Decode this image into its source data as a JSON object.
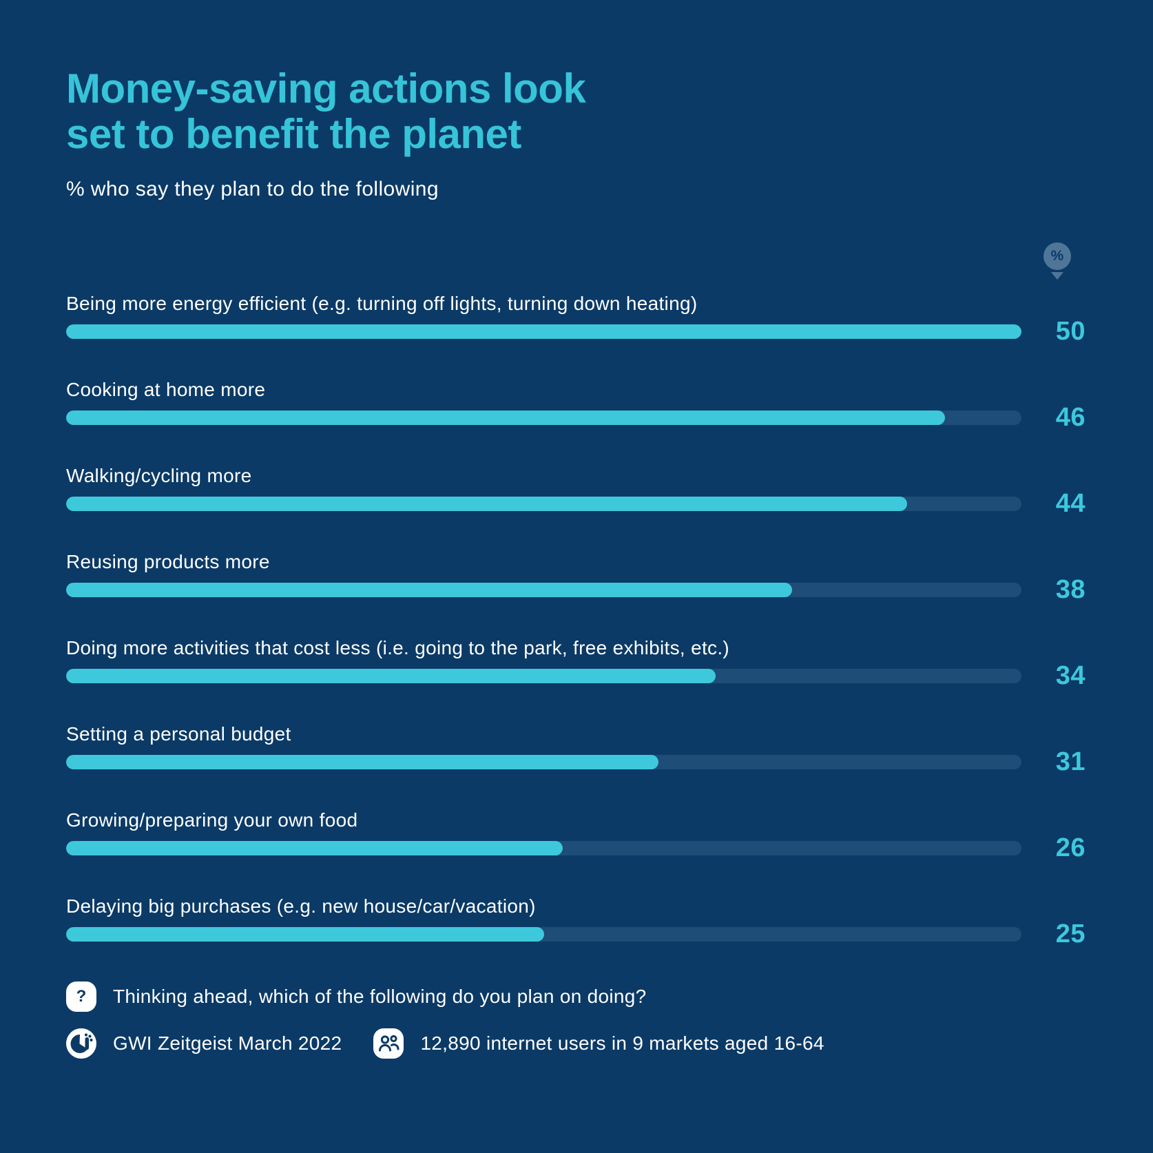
{
  "title": "Money-saving actions look\nset to benefit the planet",
  "subtitle": "% who say they plan to do the following",
  "unit_badge": "%",
  "chart_data": {
    "type": "bar",
    "orientation": "horizontal",
    "title": "Money-saving actions look set to benefit the planet",
    "subtitle": "% who say they plan to do the following",
    "unit": "%",
    "xlim": [
      0,
      50
    ],
    "categories": [
      "Being more energy efficient (e.g. turning off lights, turning down heating)",
      "Cooking at home more",
      "Walking/cycling more",
      "Reusing products more",
      "Doing more activities that cost less (i.e. going to the park, free exhibits, etc.)",
      "Setting a personal budget",
      "Growing/preparing your own food",
      "Delaying big purchases (e.g. new house/car/vacation)"
    ],
    "values": [
      50,
      46,
      44,
      38,
      34,
      31,
      26,
      25
    ],
    "bar_color": "#3DC9DB",
    "track_color": "#1E4D77",
    "grid": false,
    "legend": false
  },
  "footer": {
    "question_icon_glyph": "?",
    "question": "Thinking ahead, which of the following do you plan on doing?",
    "source": "GWI Zeitgeist March 2022",
    "sample": "12,890 internet users in 9 markets aged 16-64"
  },
  "colors": {
    "background": "#0B3A66",
    "title_accent": "#36C4D8",
    "bar": "#3DC9DB",
    "bar_track": "#1E4D77",
    "text": "#FFFFFF",
    "pin_badge": "#4F7699"
  }
}
